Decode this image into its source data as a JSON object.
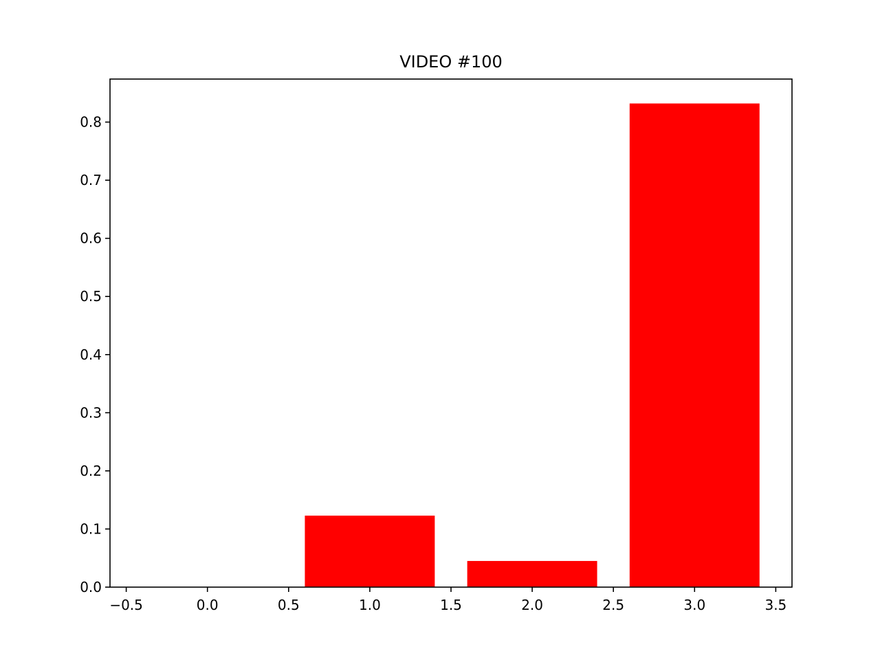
{
  "chart_data": {
    "type": "bar",
    "title": "VIDEO #100",
    "xlabel": "",
    "ylabel": "",
    "x": [
      0,
      1,
      2,
      3
    ],
    "values": [
      0.0,
      0.123,
      0.045,
      0.832
    ],
    "bar_width": 0.8,
    "xlim": [
      -0.6,
      3.6
    ],
    "ylim": [
      0,
      0.874
    ],
    "x_ticks": [
      -0.5,
      0.0,
      0.5,
      1.0,
      1.5,
      2.0,
      2.5,
      3.0,
      3.5
    ],
    "x_tick_labels": [
      "−0.5",
      "0.0",
      "0.5",
      "1.0",
      "1.5",
      "2.0",
      "2.5",
      "3.0",
      "3.5"
    ],
    "y_ticks": [
      0.0,
      0.1,
      0.2,
      0.3,
      0.4,
      0.5,
      0.6,
      0.7,
      0.8
    ],
    "y_tick_labels": [
      "0.0",
      "0.1",
      "0.2",
      "0.3",
      "0.4",
      "0.5",
      "0.6",
      "0.7",
      "0.8"
    ],
    "grid": false,
    "legend": "none",
    "bar_color": "#ff0000"
  }
}
